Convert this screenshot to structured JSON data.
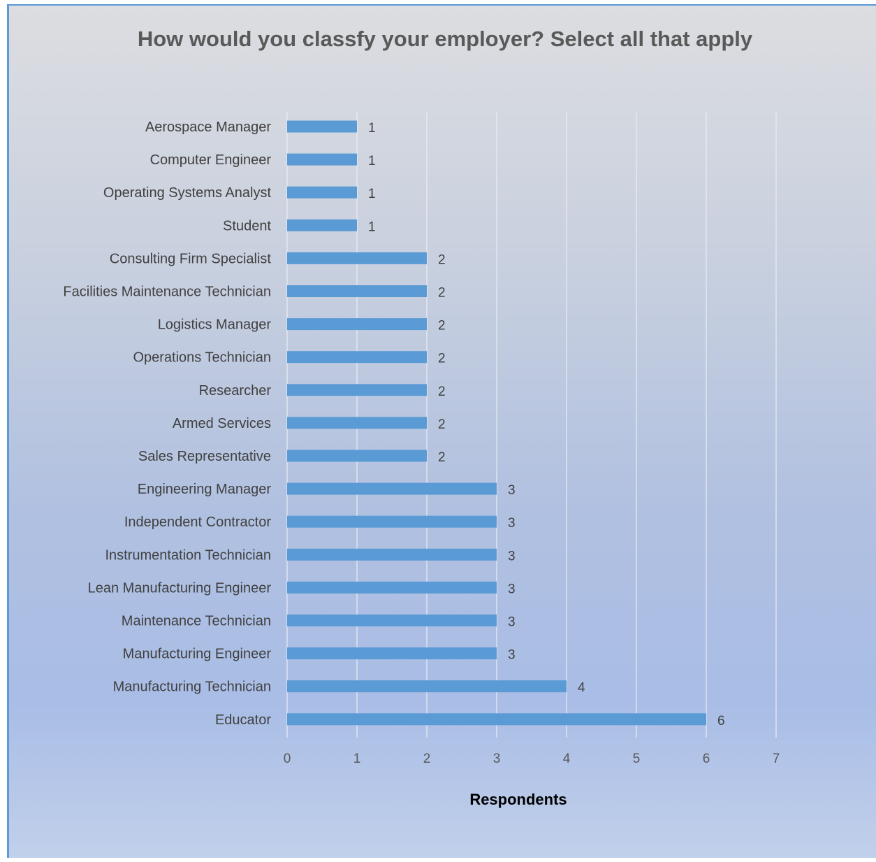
{
  "chart_data": {
    "type": "bar",
    "orientation": "horizontal",
    "title": "How would you classfy your employer? Select all that apply",
    "xlabel": "Respondents",
    "ylabel": "",
    "xlim": [
      0,
      7
    ],
    "x_ticks": [
      "0",
      "1",
      "2",
      "3",
      "4",
      "5",
      "6",
      "7"
    ],
    "grid": "vertical",
    "data_labels": true,
    "bar_color": "#5b9bd5",
    "categories": [
      "Aerospace Manager",
      "Computer Engineer",
      "Operating Systems Analyst",
      "Student",
      "Consulting Firm Specialist",
      "Facilities Maintenance Technician",
      "Logistics Manager",
      "Operations Technician",
      "Researcher",
      "Armed Services",
      "Sales Representative",
      "Engineering Manager",
      "Independent Contractor",
      "Instrumentation Technician",
      "Lean Manufacturing Engineer",
      "Maintenance Technician",
      "Manufacturing  Engineer",
      "Manufacturing Technician",
      "Educator"
    ],
    "values": [
      1,
      1,
      1,
      1,
      2,
      2,
      2,
      2,
      2,
      2,
      2,
      3,
      3,
      3,
      3,
      3,
      3,
      4,
      6
    ]
  }
}
